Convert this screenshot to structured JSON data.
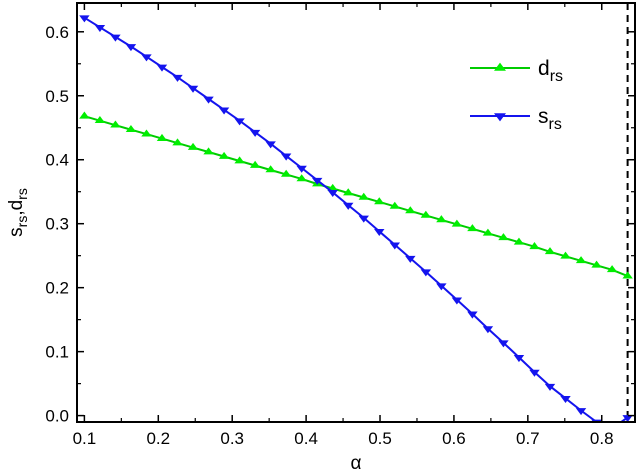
{
  "chart_data": {
    "type": "line",
    "xlabel": "α",
    "ylabel": {
      "parts": [
        {
          "text": "s",
          "sub": false
        },
        {
          "text": "rs",
          "sub": true
        },
        {
          "text": ",d",
          "sub": false
        },
        {
          "text": "rs",
          "sub": true
        }
      ]
    },
    "xlim": [
      0.09,
      0.845
    ],
    "ylim": [
      -0.01,
      0.645
    ],
    "xticks": [
      0.1,
      0.2,
      0.3,
      0.4,
      0.5,
      0.6,
      0.7,
      0.8
    ],
    "xtick_labels": [
      "0.1",
      "0.2",
      "0.3",
      "0.4",
      "0.5",
      "0.6",
      "0.7",
      "0.8"
    ],
    "yticks": [
      0.0,
      0.1,
      0.2,
      0.3,
      0.4,
      0.5,
      0.6
    ],
    "ytick_labels": [
      "0.0",
      "0.1",
      "0.2",
      "0.3",
      "0.4",
      "0.5",
      "0.6"
    ],
    "grid": false,
    "legend_position": "top-right",
    "vertical_reference_line": {
      "x": 0.835,
      "style": "dashed",
      "color": "#000000"
    },
    "series": [
      {
        "key": "d",
        "label_main": "d",
        "label_sub": "rs",
        "color": "#00ee00",
        "line_color": "#00cc00",
        "marker": "triangle-up",
        "x": [
          0.1,
          0.121,
          0.142,
          0.163,
          0.184,
          0.205,
          0.226,
          0.247,
          0.268,
          0.289,
          0.31,
          0.331,
          0.352,
          0.373,
          0.394,
          0.415,
          0.436,
          0.457,
          0.478,
          0.499,
          0.52,
          0.541,
          0.562,
          0.583,
          0.604,
          0.625,
          0.646,
          0.667,
          0.688,
          0.709,
          0.73,
          0.751,
          0.772,
          0.793,
          0.814,
          0.835
        ],
        "y": [
          0.468,
          0.461,
          0.454,
          0.447,
          0.44,
          0.433,
          0.426,
          0.419,
          0.412,
          0.405,
          0.398,
          0.391,
          0.384,
          0.377,
          0.37,
          0.362,
          0.355,
          0.348,
          0.341,
          0.334,
          0.327,
          0.32,
          0.313,
          0.306,
          0.299,
          0.292,
          0.285,
          0.278,
          0.271,
          0.264,
          0.256,
          0.249,
          0.242,
          0.235,
          0.228,
          0.218
        ]
      },
      {
        "key": "s",
        "label_main": "s",
        "label_sub": "rs",
        "color": "#1414ee",
        "line_color": "#1414ee",
        "marker": "triangle-down",
        "x": [
          0.1,
          0.121,
          0.142,
          0.163,
          0.184,
          0.205,
          0.226,
          0.247,
          0.268,
          0.289,
          0.31,
          0.331,
          0.352,
          0.373,
          0.394,
          0.415,
          0.436,
          0.457,
          0.478,
          0.499,
          0.52,
          0.541,
          0.562,
          0.583,
          0.604,
          0.625,
          0.646,
          0.667,
          0.688,
          0.709,
          0.73,
          0.751,
          0.772,
          0.793,
          0.814,
          0.835
        ],
        "y": [
          0.622,
          0.607,
          0.592,
          0.577,
          0.561,
          0.545,
          0.529,
          0.512,
          0.495,
          0.478,
          0.461,
          0.443,
          0.425,
          0.406,
          0.387,
          0.368,
          0.349,
          0.329,
          0.309,
          0.288,
          0.267,
          0.246,
          0.225,
          0.203,
          0.181,
          0.159,
          0.136,
          0.114,
          0.091,
          0.068,
          0.046,
          0.027,
          0.008,
          -0.01,
          -0.02,
          -0.003
        ]
      }
    ]
  }
}
